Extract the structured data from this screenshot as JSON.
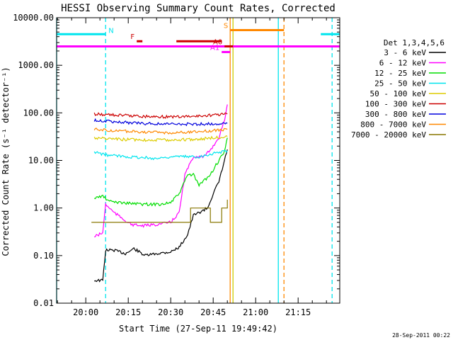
{
  "chart_data": {
    "type": "line",
    "title": "HESSI Observing Summary Count Rates, Corrected",
    "xlabel": "Start Time (27-Sep-11 19:49:42)",
    "ylabel": "Corrected Count Rate (s⁻¹ detector⁻¹)",
    "ylog": true,
    "xlim": [
      "19:49:42",
      "21:29:42"
    ],
    "ylim": [
      0.01,
      10000
    ],
    "x_ticks": [
      "20:00",
      "20:15",
      "20:30",
      "20:45",
      "21:00",
      "21:15"
    ],
    "y_ticks": [
      "0.01",
      "0.10",
      "1.00",
      "10.00",
      "100.00",
      "1000.00",
      "10000.00"
    ],
    "timestamp": "28-Sep-2011 00:22",
    "legend": {
      "title": "Det 1,3,4,5,6",
      "placement": "right",
      "entries": [
        {
          "label": "3 - 6 keV",
          "color": "#000000"
        },
        {
          "label": "6 - 12 keV",
          "color": "#ff00ff"
        },
        {
          "label": "12 - 25 keV",
          "color": "#00dd00"
        },
        {
          "label": "25 - 50 keV",
          "color": "#00e5ee"
        },
        {
          "label": "50 - 100 keV",
          "color": "#ddcc00"
        },
        {
          "label": "100 - 300 keV",
          "color": "#cc0000"
        },
        {
          "label": "300 - 800 keV",
          "color": "#0000dd"
        },
        {
          "label": "800 - 7000 keV",
          "color": "#ff8800"
        },
        {
          "label": "7000 - 20000 keV",
          "color": "#887700"
        }
      ]
    },
    "series": [
      {
        "name": "3 - 6 keV",
        "color": "#000000",
        "points": [
          [
            "20:03",
            0.03
          ],
          [
            "20:06",
            0.03
          ],
          [
            "20:07",
            0.13
          ],
          [
            "20:10",
            0.13
          ],
          [
            "20:14",
            0.11
          ],
          [
            "20:17",
            0.14
          ],
          [
            "20:21",
            0.1
          ],
          [
            "20:25",
            0.11
          ],
          [
            "20:30",
            0.12
          ],
          [
            "20:33",
            0.15
          ],
          [
            "20:36",
            0.28
          ],
          [
            "20:38",
            0.7
          ],
          [
            "20:40",
            0.8
          ],
          [
            "20:43",
            1.0
          ],
          [
            "20:45",
            2.0
          ],
          [
            "20:47",
            3.5
          ],
          [
            "20:49",
            10
          ],
          [
            "20:50",
            17
          ]
        ]
      },
      {
        "name": "6 - 12 keV",
        "color": "#ff00ff",
        "points": [
          [
            "20:03",
            0.25
          ],
          [
            "20:06",
            0.3
          ],
          [
            "20:07",
            1.2
          ],
          [
            "20:10",
            0.8
          ],
          [
            "20:13",
            0.6
          ],
          [
            "20:16",
            0.45
          ],
          [
            "20:20",
            0.42
          ],
          [
            "20:25",
            0.45
          ],
          [
            "20:30",
            0.5
          ],
          [
            "20:33",
            0.8
          ],
          [
            "20:35",
            5
          ],
          [
            "20:38",
            12
          ],
          [
            "20:42",
            12
          ],
          [
            "20:45",
            20
          ],
          [
            "20:47",
            30
          ],
          [
            "20:49",
            70
          ],
          [
            "20:50",
            150
          ]
        ]
      },
      {
        "name": "12 - 25 keV",
        "color": "#00dd00",
        "points": [
          [
            "20:03",
            1.6
          ],
          [
            "20:06",
            1.8
          ],
          [
            "20:08",
            1.4
          ],
          [
            "20:12",
            1.3
          ],
          [
            "20:20",
            1.2
          ],
          [
            "20:26",
            1.2
          ],
          [
            "20:30",
            1.3
          ],
          [
            "20:33",
            2.0
          ],
          [
            "20:36",
            5
          ],
          [
            "20:38",
            5
          ],
          [
            "20:40",
            3
          ],
          [
            "20:44",
            5
          ],
          [
            "20:46",
            8
          ],
          [
            "20:49",
            15
          ],
          [
            "20:50",
            30
          ]
        ]
      },
      {
        "name": "25 - 50 keV",
        "color": "#00e5ee",
        "points": [
          [
            "20:03",
            15
          ],
          [
            "20:07",
            13
          ],
          [
            "20:15",
            12
          ],
          [
            "20:25",
            11
          ],
          [
            "20:30",
            12
          ],
          [
            "20:40",
            12
          ],
          [
            "20:45",
            14
          ],
          [
            "20:50",
            16
          ]
        ]
      },
      {
        "name": "50 - 100 keV",
        "color": "#ddcc00",
        "points": [
          [
            "20:03",
            30
          ],
          [
            "20:10",
            28
          ],
          [
            "20:20",
            27
          ],
          [
            "20:30",
            27
          ],
          [
            "20:40",
            28
          ],
          [
            "20:50",
            32
          ]
        ]
      },
      {
        "name": "100 - 300 keV",
        "color": "#cc0000",
        "points": [
          [
            "20:03",
            95
          ],
          [
            "20:10",
            90
          ],
          [
            "20:20",
            85
          ],
          [
            "20:30",
            82
          ],
          [
            "20:40",
            85
          ],
          [
            "20:50",
            95
          ]
        ]
      },
      {
        "name": "300 - 800 keV",
        "color": "#0000dd",
        "points": [
          [
            "20:03",
            70
          ],
          [
            "20:10",
            65
          ],
          [
            "20:20",
            60
          ],
          [
            "20:30",
            58
          ],
          [
            "20:40",
            58
          ],
          [
            "20:50",
            60
          ]
        ]
      },
      {
        "name": "800 - 7000 keV",
        "color": "#ff8800",
        "points": [
          [
            "20:03",
            45
          ],
          [
            "20:10",
            42
          ],
          [
            "20:20",
            40
          ],
          [
            "20:30",
            38
          ],
          [
            "20:40",
            40
          ],
          [
            "20:50",
            45
          ]
        ]
      },
      {
        "name": "7000 - 20000 keV",
        "color": "#887700",
        "step": true,
        "points": [
          [
            "20:02",
            0.5
          ],
          [
            "20:25",
            0.5
          ],
          [
            "20:26",
            0.5
          ],
          [
            "20:36",
            0.5
          ],
          [
            "20:37",
            1.0
          ],
          [
            "20:43",
            1.0
          ],
          [
            "20:44",
            0.5
          ],
          [
            "20:47",
            0.5
          ],
          [
            "20:48",
            1.0
          ],
          [
            "20:50",
            1.5
          ]
        ]
      }
    ],
    "flag_bars": [
      {
        "label": "N",
        "color": "#00e5ee",
        "segments": [
          [
            "19:49:42",
            "20:07"
          ],
          [
            "21:23",
            "21:29:42"
          ]
        ],
        "value": 4500
      },
      {
        "label": "",
        "color": "#ff00ff",
        "segments": [
          [
            "19:49:42",
            "21:29:42"
          ]
        ],
        "value": 2500
      },
      {
        "label": "F",
        "color": "#cc0000",
        "segments": [
          [
            "20:18",
            "20:20"
          ],
          [
            "20:32",
            "20:48"
          ]
        ],
        "value": 3200
      },
      {
        "label": "S",
        "color": "#ff8800",
        "segments": [
          [
            "20:51",
            "21:10"
          ]
        ],
        "value": 5500
      },
      {
        "label": "A0",
        "color": "#cc0000",
        "segments": [
          [
            "20:49",
            "20:52"
          ]
        ],
        "value": 2500
      },
      {
        "label": "A1",
        "color": "#ff00ff",
        "segments": [
          [
            "20:48",
            "20:51"
          ]
        ],
        "value": 1900
      }
    ],
    "vertical_lines": [
      {
        "time": "19:49:42",
        "color": "#00e5ee",
        "dashed": false
      },
      {
        "time": "20:07",
        "color": "#00e5ee",
        "dashed": true
      },
      {
        "time": "20:51",
        "color": "#ff8800",
        "dashed": false
      },
      {
        "time": "20:52",
        "color": "#cccc00",
        "dashed": false
      },
      {
        "time": "21:08",
        "color": "#00e5ee",
        "dashed": false
      },
      {
        "time": "21:10",
        "color": "#ff8800",
        "dashed": true
      },
      {
        "time": "21:27",
        "color": "#00e5ee",
        "dashed": true
      }
    ]
  }
}
